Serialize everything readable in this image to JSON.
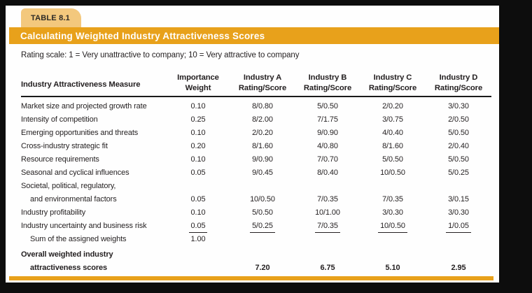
{
  "tab": {
    "label": "TABLE 8.1"
  },
  "banner": {
    "title": "Calculating Weighted Industry Attractiveness Scores"
  },
  "note": "Rating scale: 1 = Very unattractive to company; 10 = Very attractive to company",
  "colors": {
    "banner_orange": "#e8a11b",
    "tab_orange": "#f3c87d",
    "text": "#231f20",
    "card_bg": "#fefefe",
    "page_bg": "#0d0d0d"
  },
  "table": {
    "measure_header": "Industry Attractiveness Measure",
    "columns": [
      {
        "line1": "Importance",
        "line2": "Weight"
      },
      {
        "line1": "Industry A",
        "line2": "Rating/Score"
      },
      {
        "line1": "Industry B",
        "line2": "Rating/Score"
      },
      {
        "line1": "Industry C",
        "line2": "Rating/Score"
      },
      {
        "line1": "Industry D",
        "line2": "Rating/Score"
      }
    ],
    "rows": [
      {
        "measure": "Market size and projected growth rate",
        "weight": "0.10",
        "a": "8/0.80",
        "b": "5/0.50",
        "c": "2/0.20",
        "d": "3/0.30"
      },
      {
        "measure": "Intensity of competition",
        "weight": "0.25",
        "a": "8/2.00",
        "b": "7/1.75",
        "c": "3/0.75",
        "d": "2/0.50"
      },
      {
        "measure": "Emerging opportunities and threats",
        "weight": "0.10",
        "a": "2/0.20",
        "b": "9/0.90",
        "c": "4/0.40",
        "d": "5/0.50"
      },
      {
        "measure": "Cross-industry strategic fit",
        "weight": "0.20",
        "a": "8/1.60",
        "b": "4/0.80",
        "c": "8/1.60",
        "d": "2/0.40"
      },
      {
        "measure": "Resource requirements",
        "weight": "0.10",
        "a": "9/0.90",
        "b": "7/0.70",
        "c": "5/0.50",
        "d": "5/0.50"
      },
      {
        "measure": "Seasonal and cyclical influences",
        "weight": "0.05",
        "a": "9/0.45",
        "b": "8/0.40",
        "c": "10/0.50",
        "d": "5/0.25"
      },
      {
        "measure_line1": "Societal, political, regulatory,",
        "measure_line2": "and environmental factors",
        "weight": "0.05",
        "a": "10/0.50",
        "b": "7/0.35",
        "c": "7/0.35",
        "d": "3/0.15"
      },
      {
        "measure": "Industry profitability",
        "weight": "0.10",
        "a": "5/0.50",
        "b": "10/1.00",
        "c": "3/0.30",
        "d": "3/0.30"
      },
      {
        "measure": "Industry uncertainty and business risk",
        "weight": "0.05",
        "a": "5/0.25",
        "b": "7/0.35",
        "c": "10/0.50",
        "d": "1/0.05"
      },
      {
        "measure": "Sum of the assigned weights",
        "weight": "1.00"
      }
    ],
    "totals": {
      "label_line1": "Overall weighted industry",
      "label_line2": "attractiveness scores",
      "a": "7.20",
      "b": "6.75",
      "c": "5.10",
      "d": "2.95"
    }
  }
}
